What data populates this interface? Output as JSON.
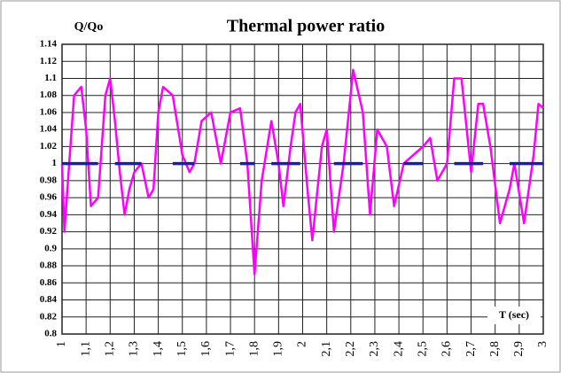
{
  "chart_data": {
    "type": "line",
    "title": "Thermal power ratio",
    "y_label": "Q/Qo",
    "x_label": "T (sec)",
    "x": [
      1.0,
      1.01,
      1.03,
      1.05,
      1.08,
      1.1,
      1.12,
      1.15,
      1.18,
      1.2,
      1.22,
      1.24,
      1.26,
      1.28,
      1.3,
      1.33,
      1.36,
      1.38,
      1.4,
      1.42,
      1.46,
      1.5,
      1.53,
      1.55,
      1.58,
      1.62,
      1.66,
      1.7,
      1.74,
      1.77,
      1.8,
      1.83,
      1.87,
      1.9,
      1.92,
      1.95,
      1.97,
      1.99,
      2.02,
      2.04,
      2.08,
      2.1,
      2.13,
      2.17,
      2.21,
      2.25,
      2.28,
      2.31,
      2.35,
      2.38,
      2.42,
      2.46,
      2.5,
      2.53,
      2.56,
      2.6,
      2.63,
      2.66,
      2.7,
      2.73,
      2.75,
      2.78,
      2.82,
      2.86,
      2.88,
      2.92,
      2.96,
      2.98,
      3.0
    ],
    "series": [
      {
        "color": "#ff00ff",
        "values": [
          1.0,
          0.92,
          1.0,
          1.08,
          1.09,
          1.04,
          0.95,
          0.96,
          1.08,
          1.1,
          1.05,
          0.99,
          0.94,
          0.97,
          0.99,
          1.0,
          0.96,
          0.97,
          1.06,
          1.09,
          1.08,
          1.01,
          0.99,
          1.0,
          1.05,
          1.06,
          1.0,
          1.06,
          1.065,
          1.0,
          0.87,
          0.98,
          1.05,
          1.0,
          0.95,
          1.02,
          1.06,
          1.07,
          0.97,
          0.91,
          1.02,
          1.04,
          0.92,
          1.0,
          1.11,
          1.06,
          0.94,
          1.04,
          1.02,
          0.95,
          1.0,
          1.01,
          1.02,
          1.03,
          0.98,
          1.0,
          1.1,
          1.1,
          0.99,
          1.07,
          1.07,
          1.02,
          0.93,
          0.97,
          1.0,
          0.93,
          1.01,
          1.07,
          1.065
        ]
      },
      {
        "color": "#1c1ca8",
        "values": [
          1,
          1,
          1,
          1,
          1,
          1,
          1,
          1,
          null,
          null,
          1,
          1,
          1,
          1,
          1,
          1,
          null,
          null,
          null,
          null,
          1,
          1,
          1,
          1,
          null,
          null,
          null,
          null,
          1,
          1,
          1,
          null,
          1,
          1,
          1,
          1,
          1,
          1,
          null,
          null,
          null,
          null,
          1,
          1,
          1,
          1,
          null,
          null,
          null,
          null,
          1,
          1,
          1,
          null,
          null,
          null,
          1,
          1,
          1,
          1,
          1,
          null,
          null,
          1,
          1,
          1,
          1,
          1,
          1
        ]
      }
    ],
    "xlim": [
      1,
      3
    ],
    "ylim": [
      0.8,
      1.14
    ],
    "xticks": [
      1,
      {
        "value": 1.1,
        "label": "1,1"
      },
      {
        "value": 1.2,
        "label": "1,2"
      },
      {
        "value": 1.3,
        "label": "1,3"
      },
      {
        "value": 1.4,
        "label": "1,4"
      },
      {
        "value": 1.5,
        "label": "1,5"
      },
      {
        "value": 1.6,
        "label": "1,6"
      },
      {
        "value": 1.7,
        "label": "1,7"
      },
      {
        "value": 1.8,
        "label": "1,8"
      },
      {
        "value": 1.9,
        "label": "1,9"
      },
      2,
      {
        "value": 2.1,
        "label": "2,1"
      },
      {
        "value": 2.2,
        "label": "2,2"
      },
      {
        "value": 2.3,
        "label": "2,3"
      },
      {
        "value": 2.4,
        "label": "2,4"
      },
      {
        "value": 2.5,
        "label": "2,5"
      },
      {
        "value": 2.6,
        "label": "2,6"
      },
      {
        "value": 2.7,
        "label": "2,7"
      },
      {
        "value": 2.8,
        "label": "2,8"
      },
      {
        "value": 2.9,
        "label": "2,9"
      },
      3
    ],
    "yticks": [
      0.8,
      0.82,
      0.84,
      0.86,
      0.88,
      0.9,
      0.92,
      0.94,
      0.96,
      0.98,
      1,
      1.02,
      1.04,
      1.06,
      1.08,
      1.1,
      1.12,
      1.14
    ],
    "grid": true
  }
}
